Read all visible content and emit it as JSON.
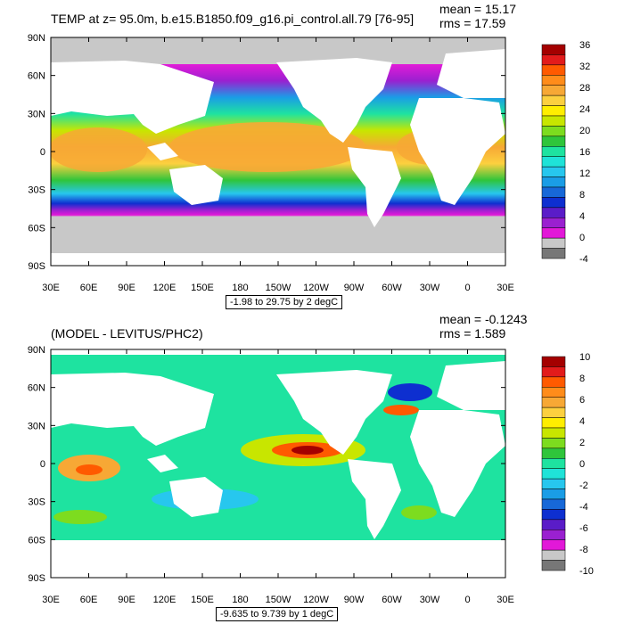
{
  "panel_top": {
    "title": "TEMP at z=  95.0m, b.e15.B1850.f09_g16.pi_control.all.79 [76-95]",
    "mean": "mean = 15.17",
    "rms": "rms = 17.59",
    "range_label": "-1.98 to 29.75 by 2 degC",
    "colorbar_labels": [
      "36",
      "32",
      "28",
      "24",
      "20",
      "16",
      "12",
      "8",
      "4",
      "0",
      "-4"
    ],
    "colorbar_colors": [
      "#a40000",
      "#e21b1b",
      "#ff5a00",
      "#ff8c1a",
      "#f7a835",
      "#fcd03f",
      "#ffee00",
      "#c8e600",
      "#7ddc1f",
      "#2fc53b",
      "#1ee3a0",
      "#1fe3d8",
      "#27c7ee",
      "#1a9de6",
      "#1768d8",
      "#0e2fd0",
      "#5a1cc8",
      "#9a20d0",
      "#e218d8",
      "#c8c8c8",
      "#777777"
    ]
  },
  "panel_bottom": {
    "title": "(MODEL - LEVITUS/PHC2)",
    "mean": "mean = -0.1243",
    "rms": "rms = 1.589",
    "range_label": "-9.635 to 9.739 by 1 degC",
    "colorbar_labels": [
      "10",
      "8",
      "6",
      "4",
      "2",
      "0",
      "-2",
      "-4",
      "-6",
      "-8",
      "-10"
    ],
    "colorbar_colors": [
      "#a40000",
      "#e21b1b",
      "#ff5a00",
      "#ff8c1a",
      "#f7a835",
      "#fcd03f",
      "#ffee00",
      "#c8e600",
      "#7ddc1f",
      "#2fc53b",
      "#1ee3a0",
      "#1fe3d8",
      "#27c7ee",
      "#1a9de6",
      "#1768d8",
      "#0e2fd0",
      "#5a1cc8",
      "#9a20d0",
      "#e218d8",
      "#c8c8c8",
      "#777777"
    ]
  },
  "axes": {
    "lat_labels": [
      "90N",
      "60N",
      "30N",
      "0",
      "30S",
      "60S",
      "90S"
    ],
    "lon_labels": [
      "30E",
      "60E",
      "90E",
      "120E",
      "150E",
      "180",
      "150W",
      "120W",
      "90W",
      "60W",
      "30W",
      "0",
      "30E"
    ]
  }
}
